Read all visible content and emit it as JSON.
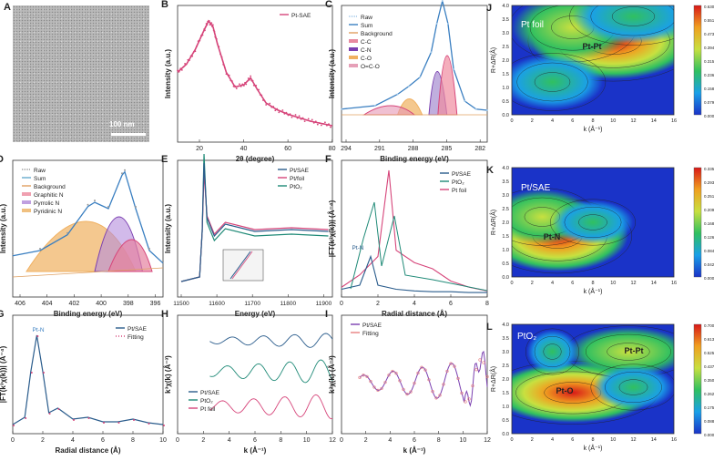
{
  "panels": {
    "A": {
      "label": "A",
      "scale_bar": "100 nm"
    },
    "B": {
      "label": "B",
      "legend": [
        "Pt-SAE"
      ],
      "xlabel": "2θ (degree)",
      "ylabel": "Intensity (a.u.)"
    },
    "C": {
      "label": "C",
      "legend": [
        "Raw",
        "Sum",
        "Background",
        "C-C",
        "C-N",
        "C-O",
        "O=C-O"
      ],
      "xlabel": "Binding energy (eV)",
      "ylabel": "Intensity (a.u.)"
    },
    "D": {
      "label": "D",
      "legend": [
        "Raw",
        "Sum",
        "Background",
        "Graphitic N",
        "Pyrrolic N",
        "Pyridinic N"
      ],
      "xlabel": "Binding energy (eV)",
      "ylabel": "Intensity (a.u.)"
    },
    "E": {
      "label": "E",
      "legend": [
        "Pt/SAE",
        "Pt/foil",
        "PtO₂"
      ],
      "xlabel": "Energy (eV)",
      "ylabel": "Intensity (a.u.)"
    },
    "F": {
      "label": "F",
      "legend": [
        "Pt/SAE",
        "PtO₂",
        "Pt foil"
      ],
      "annotation": "Pt-N",
      "xlabel": "Radial distance (Å)",
      "ylabel": "|FT(k³χ(k))| (Å⁻⁴)"
    },
    "G": {
      "label": "G",
      "legend": [
        "Pt/SAE",
        "Fitting"
      ],
      "annotation": "Pt-N",
      "xlabel": "Radial distance (Å)",
      "ylabel": "|FT(k³χ(k))| (Å⁻⁴)"
    },
    "H": {
      "label": "H",
      "legend": [
        "Pt/SAE",
        "PtO₂",
        "Pt foil"
      ],
      "xlabel": "k (Å⁻¹)",
      "ylabel": "k³χ(k) (Å⁻³)"
    },
    "I": {
      "label": "I",
      "legend": [
        "Pt/SAE",
        "Fitting"
      ],
      "xlabel": "k (Å⁻¹)",
      "ylabel": "k³χ(k) (Å⁻³)"
    },
    "J": {
      "label": "J",
      "title": "Pt foil",
      "annotation": "Pt-Pt",
      "xlabel": "k (Å⁻¹)",
      "ylabel": "R+ΔR(Å)"
    },
    "K": {
      "label": "K",
      "title": "Pt/SAE",
      "annotation": "Pt-N",
      "xlabel": "k (Å⁻¹)",
      "ylabel": "R+ΔR(Å)"
    },
    "L": {
      "label": "L",
      "title": "PtO₂",
      "annotations": [
        "Pt-Pt",
        "Pt-O"
      ],
      "xlabel": "k (Å⁻¹)",
      "ylabel": "R+ΔR(Å)"
    }
  },
  "colorbars": {
    "J": [
      "0.630",
      "0.551",
      "0.473",
      "0.394",
      "0.315",
      "0.236",
      "0.158",
      "0.079",
      "0.000"
    ],
    "K": [
      "0.335",
      "0.293",
      "0.251",
      "0.209",
      "0.168",
      "0.126",
      "0.084",
      "0.042",
      "0.000"
    ],
    "L": [
      "0.700",
      "0.613",
      "0.525",
      "0.437",
      "0.350",
      "0.262",
      "0.175",
      "0.088",
      "0.000"
    ]
  },
  "colors": {
    "pink": "#d6457a",
    "blue": "#3a7fc1",
    "teal": "#1f8a77",
    "orange": "#f0b060",
    "purple": "#7a3fb0",
    "navy": "#2a5c8c"
  },
  "chart_data": [
    {
      "type": "line",
      "id": "B",
      "title": "",
      "xlabel": "2θ (degree)",
      "ylabel": "Intensity (a.u.)",
      "xlim": [
        10,
        80
      ],
      "x_ticks": [
        "20",
        "40",
        "60",
        "80"
      ],
      "series": [
        {
          "name": "Pt-SAE",
          "x": [
            10,
            14,
            18,
            22,
            24,
            26,
            28,
            32,
            36,
            40,
            43,
            46,
            50,
            55,
            60,
            65,
            70,
            75,
            80
          ],
          "values": [
            0.55,
            0.62,
            0.75,
            0.92,
            1.0,
            0.95,
            0.8,
            0.55,
            0.42,
            0.44,
            0.5,
            0.4,
            0.28,
            0.22,
            0.18,
            0.15,
            0.12,
            0.1,
            0.08
          ]
        }
      ]
    },
    {
      "type": "line",
      "id": "C",
      "xlabel": "Binding energy (eV)",
      "ylabel": "Intensity (a.u.)",
      "xlim": [
        294,
        281
      ],
      "x_ticks": [
        "294",
        "291",
        "288",
        "285",
        "282"
      ],
      "series": [
        {
          "name": "Raw",
          "x": [
            294,
            291,
            289,
            288,
            287,
            286,
            285.5,
            285,
            284.5,
            284,
            283,
            282,
            281
          ],
          "values": [
            0.05,
            0.08,
            0.18,
            0.25,
            0.33,
            0.55,
            0.8,
            1.0,
            0.8,
            0.4,
            0.12,
            0.05,
            0.04
          ]
        }
      ]
    },
    {
      "type": "line",
      "id": "D",
      "xlabel": "Binding energy (eV)",
      "ylabel": "Intensity (a.u.)",
      "xlim": [
        407,
        396
      ],
      "x_ticks": [
        "406",
        "404",
        "402",
        "400",
        "398",
        "396"
      ],
      "series": [
        {
          "name": "Raw",
          "x": [
            407,
            405,
            403,
            401.5,
            401,
            400,
            399,
            398.8,
            398,
            397,
            396
          ],
          "values": [
            0.15,
            0.2,
            0.35,
            0.62,
            0.66,
            0.6,
            0.92,
            0.95,
            0.6,
            0.2,
            0.08
          ]
        }
      ]
    },
    {
      "type": "line",
      "id": "E",
      "xlabel": "Energy (eV)",
      "ylabel": "Intensity (a.u.)",
      "xlim": [
        11500,
        11900
      ],
      "x_ticks": [
        "11500",
        "11600",
        "11700",
        "11800",
        "11900"
      ],
      "series": [
        {
          "name": "Pt/SAE",
          "x": [
            11500,
            11550,
            11560,
            11565,
            11580,
            11600,
            11700,
            11900
          ],
          "values": [
            0.1,
            0.15,
            0.9,
            1.0,
            0.6,
            0.5,
            0.55,
            0.55
          ]
        }
      ]
    },
    {
      "type": "line",
      "id": "F",
      "xlabel": "Radial distance (Å)",
      "ylabel": "|FT(k³χ(k))| (Å⁻⁴)",
      "xlim": [
        0,
        8
      ],
      "x_ticks": [
        "0",
        "2",
        "4",
        "6",
        "8"
      ],
      "series": [
        {
          "name": "Pt foil",
          "x": [
            0,
            1,
            2,
            2.6,
            3,
            4,
            5,
            6,
            7,
            8
          ],
          "values": [
            0.05,
            0.15,
            0.3,
            1.0,
            0.35,
            0.25,
            0.2,
            0.1,
            0.05,
            0.02
          ]
        },
        {
          "name": "Pt/SAE",
          "x": [
            0,
            1,
            1.6,
            2,
            3,
            4,
            5,
            6,
            7,
            8
          ],
          "values": [
            0.05,
            0.1,
            0.45,
            0.1,
            0.05,
            0.03,
            0.02,
            0.02,
            0.01,
            0.01
          ]
        }
      ]
    },
    {
      "type": "line",
      "id": "G",
      "xlabel": "Radial distance (Å)",
      "ylabel": "|FT(k³χ(k))| (Å⁻⁴)",
      "xlim": [
        0,
        10
      ],
      "x_ticks": [
        "0",
        "2",
        "4",
        "6",
        "8",
        "10"
      ],
      "series": [
        {
          "name": "Pt/SAE",
          "x": [
            0,
            0.8,
            1.2,
            1.6,
            2.0,
            2.4,
            3,
            4,
            5,
            6,
            7,
            8,
            9,
            10
          ],
          "values": [
            0.02,
            0.1,
            0.6,
            1.0,
            0.6,
            0.15,
            0.2,
            0.08,
            0.1,
            0.05,
            0.05,
            0.08,
            0.04,
            0.02
          ]
        }
      ]
    },
    {
      "type": "line",
      "id": "H",
      "xlabel": "k (Å⁻¹)",
      "ylabel": "k³χ(k) (Å⁻³)",
      "xlim": [
        0,
        12
      ],
      "x_ticks": [
        "0",
        "2",
        "4",
        "6",
        "8",
        "10",
        "12"
      ],
      "series": [
        {
          "name": "Pt/SAE",
          "values": []
        },
        {
          "name": "PtO₂",
          "values": []
        },
        {
          "name": "Pt foil",
          "values": []
        }
      ]
    },
    {
      "type": "line",
      "id": "I",
      "xlabel": "k (Å⁻¹)",
      "ylabel": "k³χ(k) (Å⁻³)",
      "xlim": [
        0,
        12
      ],
      "x_ticks": [
        "0",
        "2",
        "4",
        "6",
        "8",
        "10",
        "12"
      ],
      "series": [
        {
          "name": "Pt/SAE",
          "values": []
        },
        {
          "name": "Fitting",
          "values": []
        }
      ]
    },
    {
      "type": "heatmap",
      "id": "J",
      "xlabel": "k (Å⁻¹)",
      "ylabel": "R+ΔR(Å)",
      "xlim": [
        0,
        16
      ],
      "ylim": [
        0,
        4
      ],
      "x_ticks": [
        "0",
        "2",
        "4",
        "6",
        "8",
        "10",
        "12",
        "14",
        "16"
      ],
      "y_ticks": [
        "0.0",
        "0.5",
        "1.0",
        "1.5",
        "2.0",
        "2.5",
        "3.0",
        "3.5",
        "4.0"
      ]
    },
    {
      "type": "heatmap",
      "id": "K",
      "xlabel": "k (Å⁻¹)",
      "ylabel": "R+ΔR(Å)",
      "xlim": [
        0,
        16
      ],
      "ylim": [
        0,
        4
      ],
      "x_ticks": [
        "0",
        "2",
        "4",
        "6",
        "8",
        "10",
        "12",
        "14",
        "16"
      ],
      "y_ticks": [
        "0.0",
        "0.5",
        "1.0",
        "1.5",
        "2.0",
        "2.5",
        "3.0",
        "3.5",
        "4.0"
      ]
    },
    {
      "type": "heatmap",
      "id": "L",
      "xlabel": "k (Å⁻¹)",
      "ylabel": "R+ΔR(Å)",
      "xlim": [
        0,
        16
      ],
      "ylim": [
        0,
        4
      ],
      "x_ticks": [
        "0",
        "2",
        "4",
        "6",
        "8",
        "10",
        "12",
        "14",
        "16"
      ],
      "y_ticks": [
        "0.0",
        "0.5",
        "1.0",
        "1.5",
        "2.0",
        "2.5",
        "3.0",
        "3.5",
        "4.0"
      ]
    }
  ]
}
